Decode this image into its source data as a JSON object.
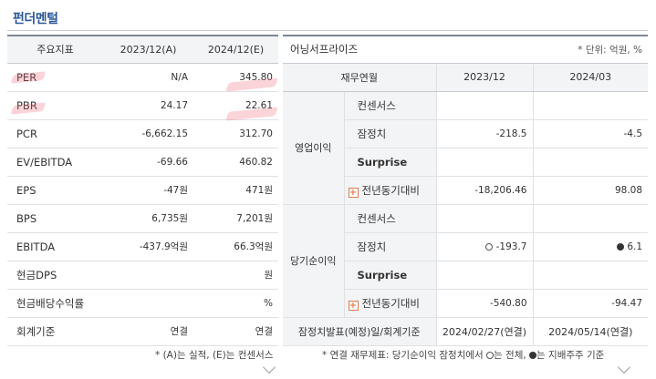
{
  "title": "펀더멘털",
  "left": {
    "headers": [
      "주요지표",
      "2023/12(A)",
      "2024/12(E)"
    ],
    "rows": [
      {
        "name": "PER",
        "a": "N/A",
        "e": "345.80"
      },
      {
        "name": "PBR",
        "a": "24.17",
        "e": "22.61"
      },
      {
        "name": "PCR",
        "a": "-6,662.15",
        "e": "312.70"
      },
      {
        "name": "EV/EBITDA",
        "a": "-69.66",
        "e": "460.82"
      },
      {
        "name": "EPS",
        "a": "-47원",
        "e": "471원"
      },
      {
        "name": "BPS",
        "a": "6,735원",
        "e": "7,201원"
      },
      {
        "name": "EBITDA",
        "a": "-437.9억원",
        "e": "66.3억원"
      },
      {
        "name": "현금DPS",
        "a": "",
        "e": "원"
      },
      {
        "name": "현금배당수익률",
        "a": "",
        "e": "%"
      },
      {
        "name": "회계기준",
        "a": "연결",
        "e": "연결"
      }
    ],
    "note": "* (A)는 실적, (E)는 컨센서스"
  },
  "right": {
    "title": "어닝서프라이즈",
    "unit": "* 단위: 억원, %",
    "headers": [
      "재무연월",
      "2023/12",
      "2024/03"
    ],
    "groups": [
      {
        "label": "영업이익",
        "rows": [
          {
            "label": "컨센서스",
            "v1": "",
            "v2": ""
          },
          {
            "label": "잠정치",
            "v1": "-218.5",
            "v2": "-4.5"
          },
          {
            "label": "Surprise",
            "v1": "",
            "v2": ""
          },
          {
            "label": "전년동기대비",
            "v1": "-18,206.46",
            "v2": "98.08"
          }
        ]
      },
      {
        "label": "당기순이익",
        "rows": [
          {
            "label": "컨센서스",
            "v1": "",
            "v2": ""
          },
          {
            "label": "잠정치",
            "v1": "-193.7",
            "v2": "6.1"
          },
          {
            "label": "Surprise",
            "v1": "",
            "v2": ""
          },
          {
            "label": "전년동기대비",
            "v1": "-540.80",
            "v2": "-94.47"
          }
        ]
      }
    ],
    "footer": {
      "label": "잠정치발표(예정)일/회계기준",
      "v1": "2024/02/27(연결)",
      "v2": "2024/05/14(연결)"
    },
    "note_prefix": "* 연결 재무제표: 당기순이익 잠정치에서",
    "note_open": "는 전체,",
    "note_fill": "는 지배주주 기준"
  },
  "colors": {
    "title": "#2b5797",
    "header_bg": "#f3f4f6",
    "accent_plus": "#e07a4a"
  }
}
